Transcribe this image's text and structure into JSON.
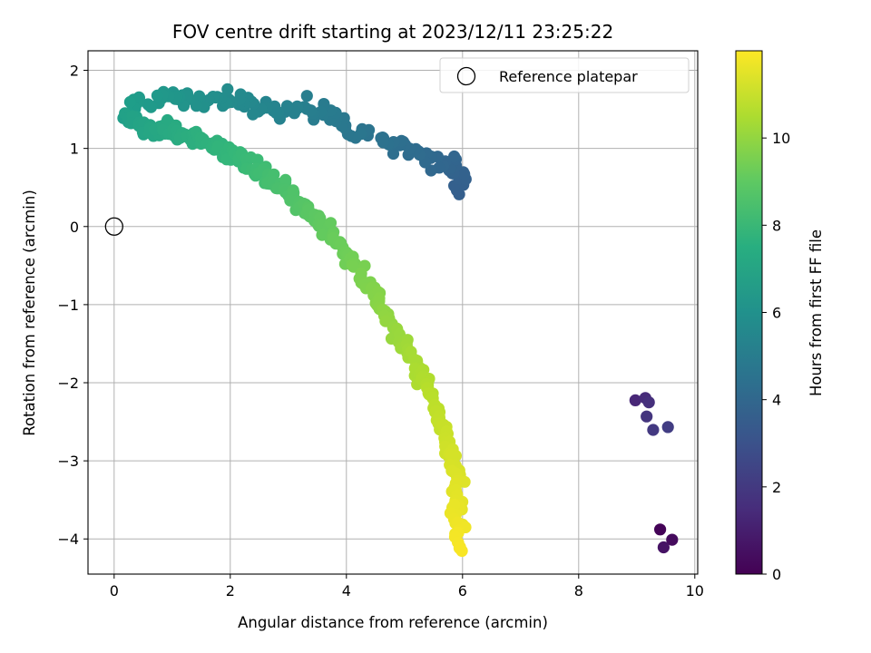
{
  "chart_data": {
    "type": "scatter",
    "title": "FOV centre drift starting at 2023/12/11 23:25:22",
    "xlabel": "Angular distance from reference (arcmin)",
    "ylabel": "Rotation from reference (arcmin)",
    "xlim": [
      -0.45,
      10.05
    ],
    "ylim": [
      -4.45,
      2.25
    ],
    "xticks": [
      0,
      2,
      4,
      6,
      8,
      10
    ],
    "yticks": [
      2,
      1,
      0,
      -1,
      -2,
      -3,
      -4
    ],
    "grid": true,
    "colormap": "viridis",
    "colorbar": {
      "label": "Hours from first FF file",
      "range": [
        0,
        12
      ],
      "ticks": [
        0,
        2,
        4,
        6,
        8,
        10
      ]
    },
    "legend": {
      "position": "top-right",
      "entries": [
        "Reference platepar"
      ]
    },
    "reference_point": {
      "x": 0,
      "y": 0
    },
    "path_segments": [
      {
        "points": [
          [
            9.42,
            -3.9
          ],
          [
            9.62,
            -4.03
          ],
          [
            9.48,
            -4.11
          ]
        ],
        "t0": 0.1,
        "t1": 0.6,
        "count": 3,
        "spread": 0.03
      },
      {
        "points": [
          [
            8.95,
            -2.22
          ],
          [
            9.3,
            -2.22
          ],
          [
            9.15,
            -2.34
          ],
          [
            9.3,
            -2.6
          ],
          [
            9.5,
            -2.57
          ]
        ],
        "t0": 1.3,
        "t1": 2.2,
        "count": 6,
        "spread": 0.03
      },
      {
        "points": [
          [
            5.9,
            0.4
          ],
          [
            6.0,
            0.7
          ],
          [
            5.8,
            0.85
          ],
          [
            5.3,
            0.9
          ],
          [
            4.8,
            1.05
          ],
          [
            4.2,
            1.2
          ],
          [
            3.8,
            1.4
          ],
          [
            3.4,
            1.55
          ],
          [
            3.0,
            1.5
          ],
          [
            2.5,
            1.5
          ],
          [
            2.0,
            1.65
          ],
          [
            1.5,
            1.65
          ],
          [
            1.1,
            1.6
          ],
          [
            0.8,
            1.65
          ],
          [
            0.4,
            1.6
          ],
          [
            0.2,
            1.4
          ]
        ],
        "t0": 3.6,
        "t1": 6.7,
        "count": 145,
        "spread": 0.11
      },
      {
        "points": [
          [
            0.2,
            1.4
          ],
          [
            0.5,
            1.25
          ],
          [
            0.9,
            1.25
          ],
          [
            1.2,
            1.15
          ],
          [
            1.6,
            1.1
          ],
          [
            2.0,
            0.95
          ],
          [
            2.5,
            0.7
          ],
          [
            3.0,
            0.45
          ],
          [
            3.5,
            0.1
          ],
          [
            4.0,
            -0.35
          ],
          [
            4.5,
            -0.9
          ],
          [
            4.9,
            -1.4
          ],
          [
            5.3,
            -1.9
          ],
          [
            5.6,
            -2.4
          ],
          [
            5.8,
            -2.9
          ],
          [
            5.9,
            -3.3
          ],
          [
            5.9,
            -3.7
          ],
          [
            5.95,
            -4.1
          ]
        ],
        "t0": 6.8,
        "t1": 11.9,
        "count": 360,
        "spread": 0.09
      }
    ]
  }
}
